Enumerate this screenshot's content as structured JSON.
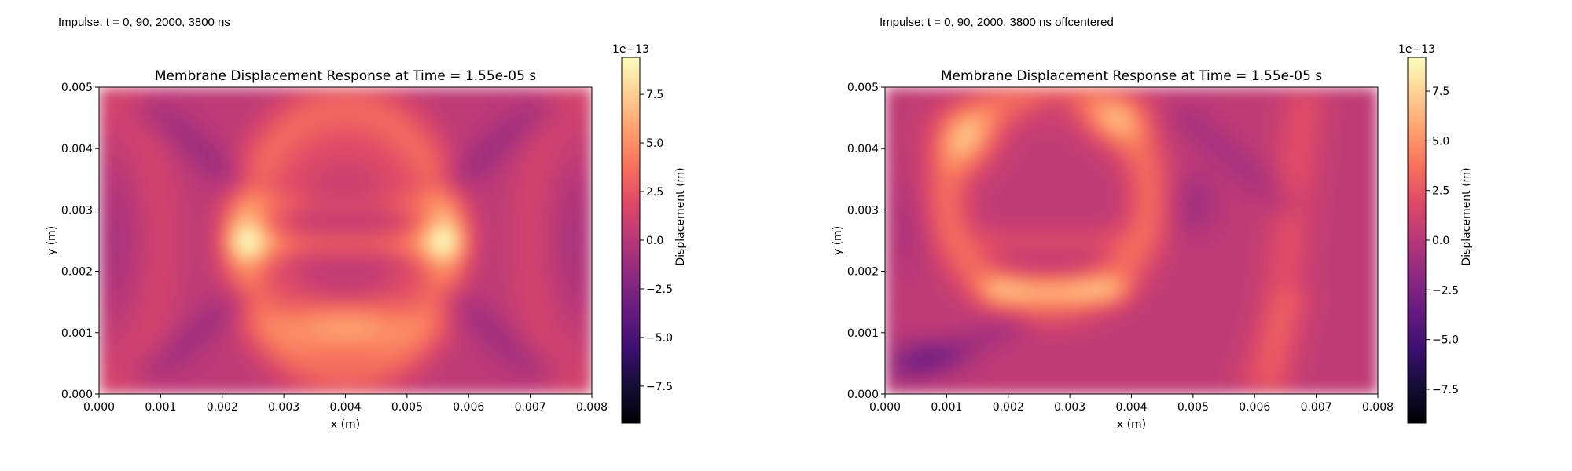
{
  "panels": [
    {
      "caption": "Impulse: t = 0, 90, 2000, 3800 ns"
    },
    {
      "caption": "Impulse: t = 0, 90, 2000, 3800 ns offcentered"
    }
  ],
  "chart_data": [
    {
      "type": "heatmap",
      "title": "Membrane Displacement Response at Time = 1.55e-05 s",
      "xlabel": "x (m)",
      "ylabel": "y (m)",
      "xlim": [
        0.0,
        0.008
      ],
      "ylim": [
        0.0,
        0.005
      ],
      "x_ticks": [
        "0.000",
        "0.001",
        "0.002",
        "0.003",
        "0.004",
        "0.005",
        "0.006",
        "0.007",
        "0.008"
      ],
      "y_ticks": [
        "0.000",
        "0.001",
        "0.002",
        "0.003",
        "0.004",
        "0.005"
      ],
      "colormap": "magma",
      "colorbar": {
        "label": "Displacement (m)",
        "offset_text": "1e−13",
        "range": [
          -9.4,
          9.4
        ],
        "ticks": [
          "−7.5",
          "−5.0",
          "−2.5",
          "0.0",
          "2.5",
          "5.0",
          "7.5"
        ],
        "tick_values": [
          -7.5,
          -5.0,
          -2.5,
          0.0,
          2.5,
          5.0,
          7.5
        ]
      },
      "field": {
        "background_value": 0.3,
        "features": [
          {
            "shape": "ring",
            "x": 0.004,
            "y": 0.0025,
            "rx": 0.00165,
            "ry": 0.00215,
            "value": 3.0
          },
          {
            "shape": "ring",
            "x": 0.004,
            "y": 0.0025,
            "rx": 0.0011,
            "ry": 0.0014,
            "value": 1.2
          },
          {
            "shape": "line",
            "x1": 0.0025,
            "y1": 0.00245,
            "x2": 0.0055,
            "y2": 0.00245,
            "value": 2.4
          },
          {
            "shape": "line",
            "x1": 0.0028,
            "y1": 0.0031,
            "x2": 0.0052,
            "y2": 0.0031,
            "value": 1.2
          },
          {
            "shape": "blob",
            "x": 0.0024,
            "y": 0.00255,
            "rx": 0.00035,
            "ry": 0.0005,
            "value": 4.3
          },
          {
            "shape": "blob",
            "x": 0.0056,
            "y": 0.00255,
            "rx": 0.00035,
            "ry": 0.0005,
            "value": 4.3
          },
          {
            "shape": "blob",
            "x": 0.0043,
            "y": 0.0011,
            "rx": 0.001,
            "ry": 0.0004,
            "value": 2.2
          },
          {
            "shape": "blob",
            "x": 0.0037,
            "y": 0.0011,
            "rx": 0.001,
            "ry": 0.0004,
            "value": 2.2
          },
          {
            "shape": "line",
            "x1": 0.0009,
            "y1": 0.0046,
            "x2": 0.0022,
            "y2": 0.0035,
            "value": -1.4
          },
          {
            "shape": "line",
            "x1": 0.0071,
            "y1": 0.0046,
            "x2": 0.0058,
            "y2": 0.0035,
            "value": -1.4
          },
          {
            "shape": "line",
            "x1": 0.0009,
            "y1": 0.0004,
            "x2": 0.0022,
            "y2": 0.0015,
            "value": -1.3
          },
          {
            "shape": "line",
            "x1": 0.0071,
            "y1": 0.0004,
            "x2": 0.0058,
            "y2": 0.0015,
            "value": -1.3
          },
          {
            "shape": "blob",
            "x": 0.0003,
            "y": 0.0025,
            "rx": 0.0004,
            "ry": 0.0012,
            "value": -0.8
          },
          {
            "shape": "blob",
            "x": 0.0077,
            "y": 0.0025,
            "rx": 0.0004,
            "ry": 0.0012,
            "value": -0.8
          },
          {
            "shape": "ring",
            "x": 0.0001,
            "y": 0.0025,
            "rx": 0.0009,
            "ry": 0.0024,
            "value": 1.0
          },
          {
            "shape": "ring",
            "x": 0.0079,
            "y": 0.0025,
            "rx": 0.0009,
            "ry": 0.0024,
            "value": 1.0
          }
        ]
      }
    },
    {
      "type": "heatmap",
      "title": "Membrane Displacement Response at Time = 1.55e-05 s",
      "xlabel": "x (m)",
      "ylabel": "y (m)",
      "xlim": [
        0.0,
        0.008
      ],
      "ylim": [
        0.0,
        0.005
      ],
      "x_ticks": [
        "0.000",
        "0.001",
        "0.002",
        "0.003",
        "0.004",
        "0.005",
        "0.006",
        "0.007",
        "0.008"
      ],
      "y_ticks": [
        "0.000",
        "0.001",
        "0.002",
        "0.003",
        "0.004",
        "0.005"
      ],
      "colormap": "magma",
      "colorbar": {
        "label": "Displacement (m)",
        "offset_text": "1e−13",
        "range": [
          -9.2,
          9.2
        ],
        "ticks": [
          "−7.5",
          "−5.0",
          "−2.5",
          "0.0",
          "2.5",
          "5.0",
          "7.5"
        ],
        "tick_values": [
          -7.5,
          -5.0,
          -2.5,
          0.0,
          2.5,
          5.0,
          7.5
        ]
      },
      "field": {
        "background_value": 0.4,
        "features": [
          {
            "shape": "ring",
            "x": 0.00265,
            "y": 0.0032,
            "rx": 0.00165,
            "ry": 0.0017,
            "value": 3.0
          },
          {
            "shape": "blob",
            "x": 0.0013,
            "y": 0.0042,
            "rx": 0.0005,
            "ry": 0.0005,
            "value": 3.6
          },
          {
            "shape": "blob",
            "x": 0.0038,
            "y": 0.0045,
            "rx": 0.0005,
            "ry": 0.0004,
            "value": 3.2
          },
          {
            "shape": "line",
            "x1": 0.0019,
            "y1": 0.0017,
            "x2": 0.0036,
            "y2": 0.0017,
            "value": 3.4
          },
          {
            "shape": "line",
            "x1": 0.0018,
            "y1": 0.0025,
            "x2": 0.0036,
            "y2": 0.0025,
            "value": 1.2
          },
          {
            "shape": "blob",
            "x": 0.0028,
            "y": 0.0047,
            "rx": 0.0004,
            "ry": 0.0002,
            "value": -1.3
          },
          {
            "shape": "blob",
            "x": 0.00065,
            "y": 0.0006,
            "rx": 0.0006,
            "ry": 0.0003,
            "value": -2.4
          },
          {
            "shape": "line",
            "x1": 0.0004,
            "y1": 0.0004,
            "x2": 0.002,
            "y2": 0.0011,
            "value": -1.2
          },
          {
            "shape": "blob",
            "x": 0.005,
            "y": 0.0031,
            "rx": 0.0004,
            "ry": 0.0005,
            "value": -1.4
          },
          {
            "shape": "line",
            "x1": 0.0049,
            "y1": 0.0045,
            "x2": 0.0065,
            "y2": 0.0031,
            "value": -1.0
          },
          {
            "shape": "line",
            "x1": 0.0068,
            "y1": 0.0047,
            "x2": 0.0063,
            "y2": 0.0002,
            "value": 1.6
          },
          {
            "shape": "line",
            "x1": 0.006,
            "y1": 0.0003,
            "x2": 0.0066,
            "y2": 0.0015,
            "value": 0.9
          },
          {
            "shape": "blob",
            "x": 0.0004,
            "y": 0.0027,
            "rx": 0.0003,
            "ry": 0.0007,
            "value": -0.8
          }
        ]
      }
    }
  ]
}
